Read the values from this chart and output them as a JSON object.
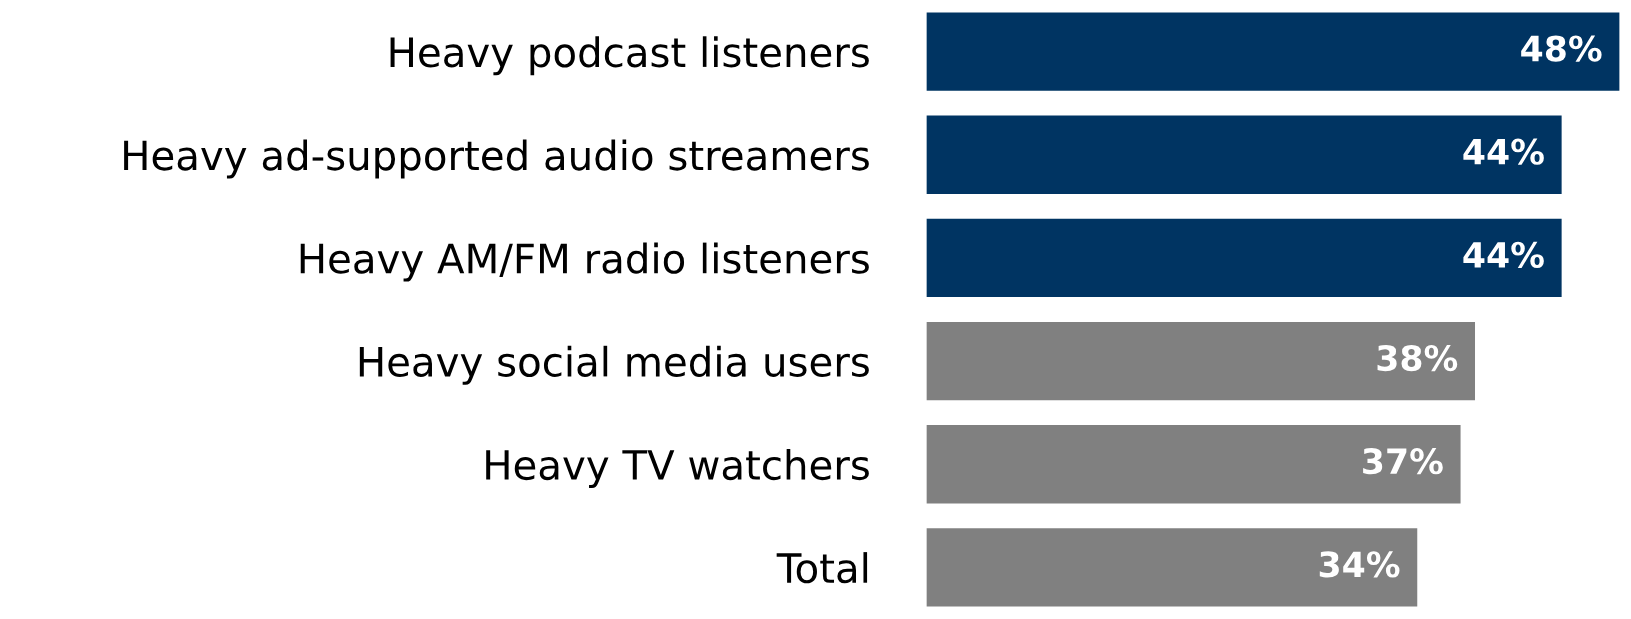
{
  "chart_data": {
    "type": "bar",
    "orientation": "horizontal",
    "categories": [
      "Heavy podcast listeners",
      "Heavy ad-supported audio streamers",
      "Heavy AM/FM radio listeners",
      "Heavy social media users",
      "Heavy TV watchers",
      "Total"
    ],
    "values": [
      48,
      44,
      44,
      38,
      37,
      34
    ],
    "colors": [
      "#003462",
      "#003462",
      "#003462",
      "#808080",
      "#808080",
      "#808080"
    ],
    "value_labels": [
      "48%",
      "44%",
      "44%",
      "38%",
      "37%",
      "34%"
    ],
    "grid": false,
    "legend": false
  }
}
